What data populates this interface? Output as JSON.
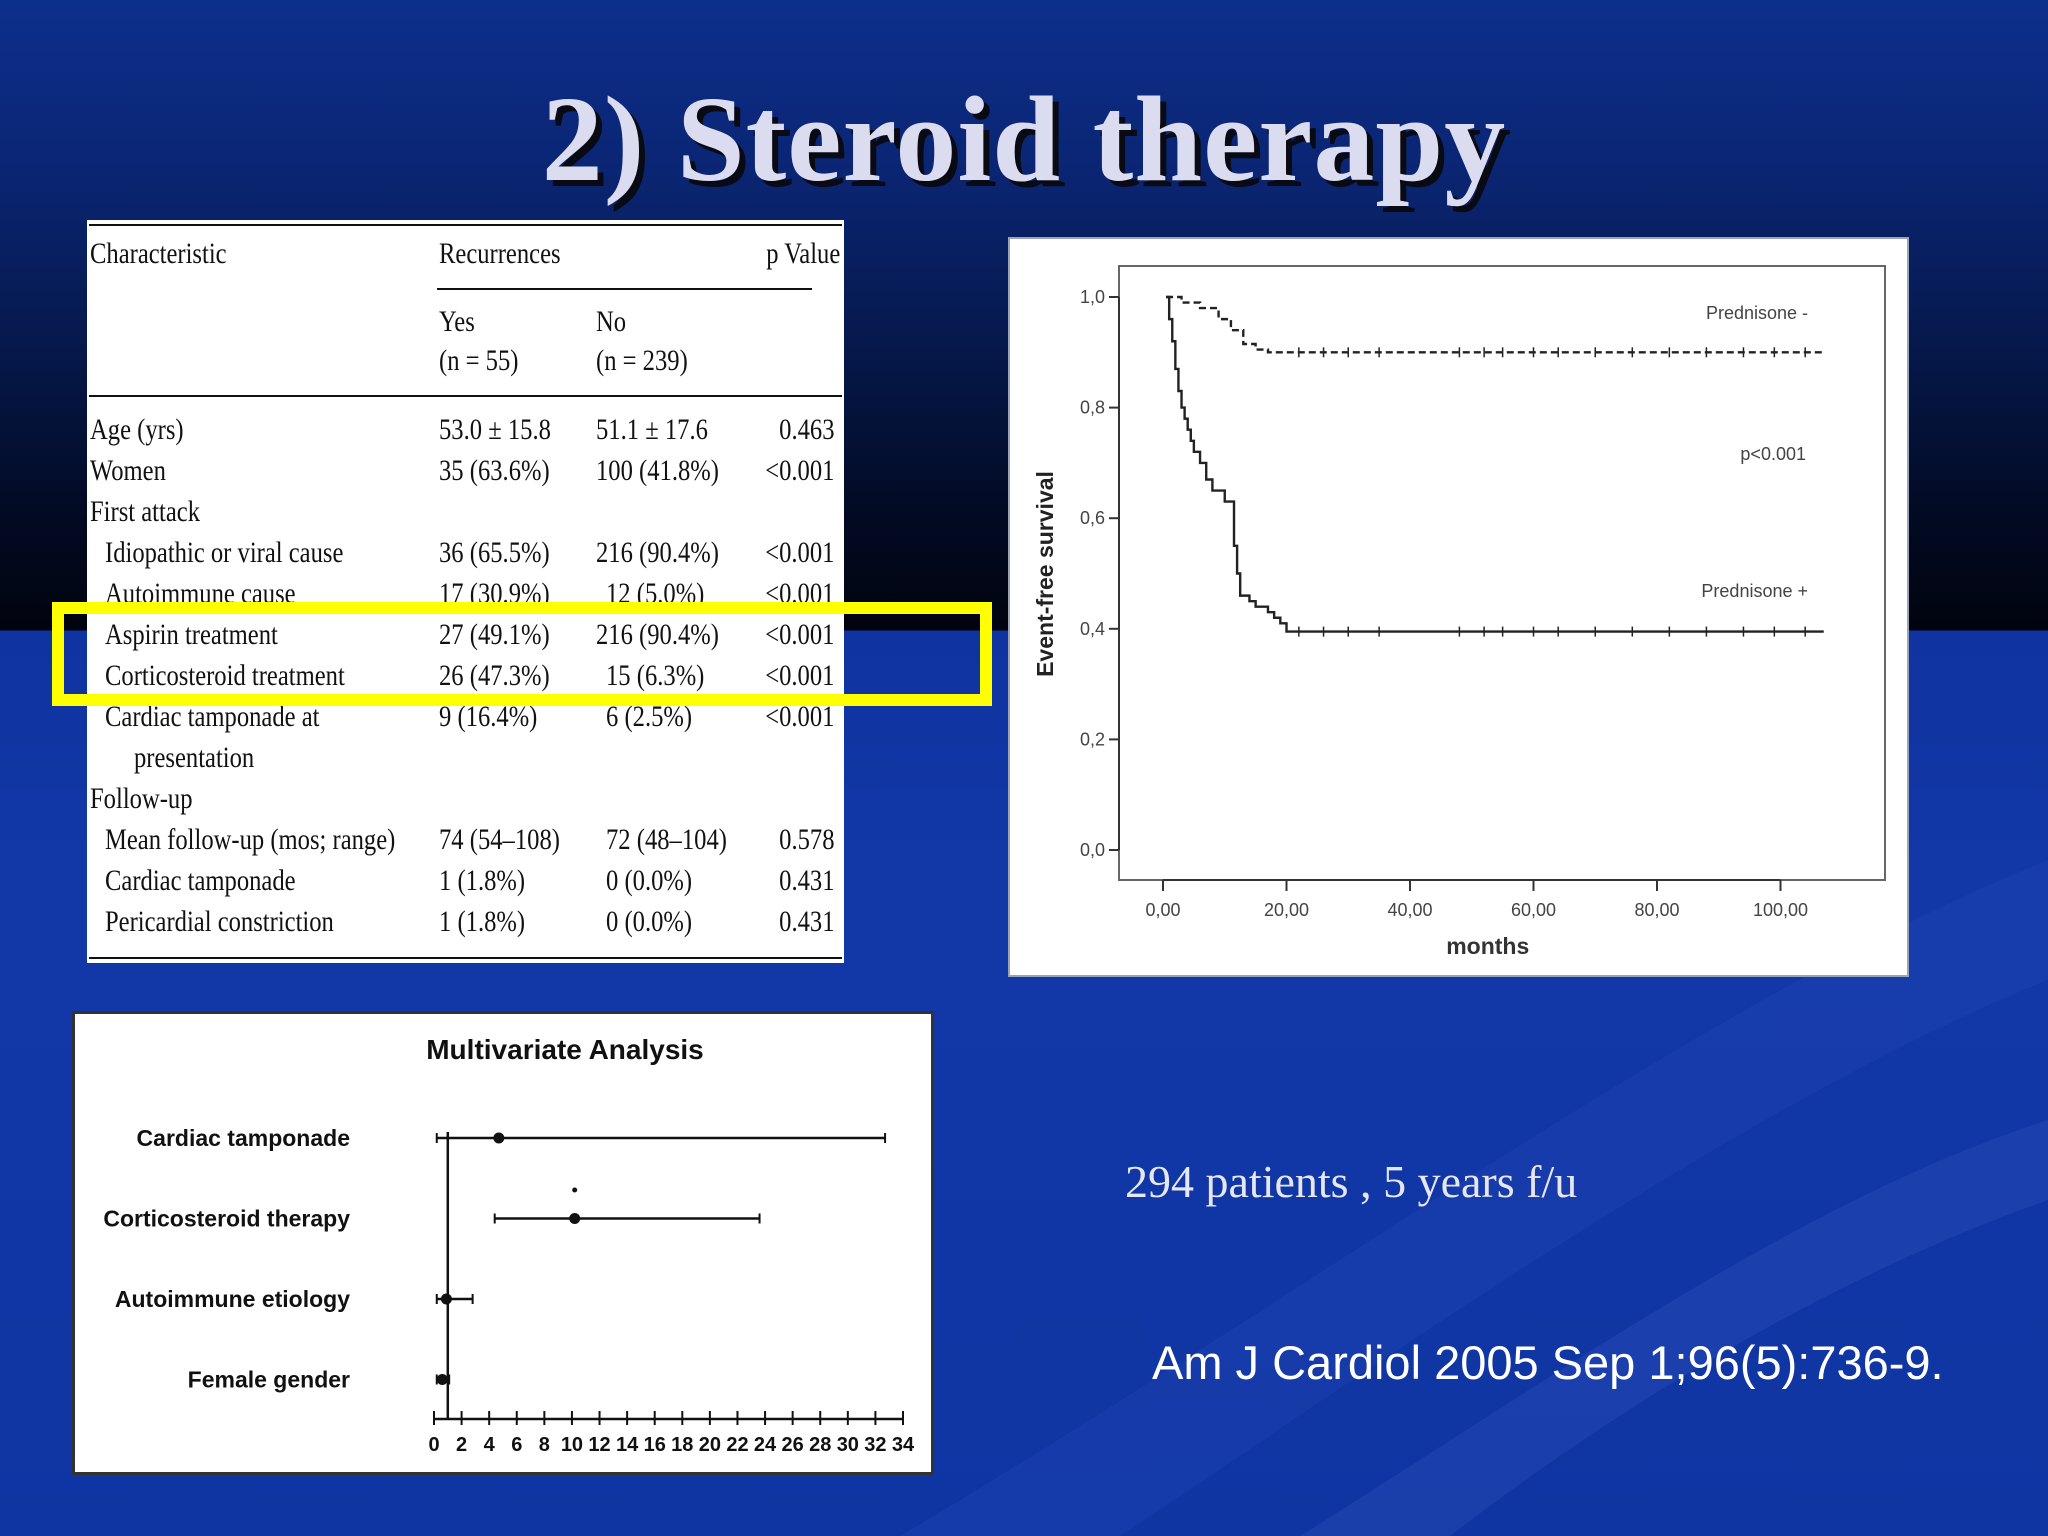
{
  "slide": {
    "title": "2) Steroid therapy",
    "caption": "294 patients , 5 years f/u",
    "citation": "Am J Cardiol 2005 Sep 1;96(5):736-9."
  },
  "table": {
    "header": {
      "characteristic": "Characteristic",
      "recurrences": "Recurrences",
      "p_value": "p Value",
      "yes": "Yes",
      "yes_n": "(n = 55)",
      "no": "No",
      "no_n": "(n = 239)"
    },
    "rows": [
      {
        "label": "Age (yrs)",
        "indent": 0,
        "yes": "53.0 ± 15.8",
        "no": "51.1 ± 17.6",
        "p": "0.463"
      },
      {
        "label": "Women",
        "indent": 0,
        "yes": "35 (63.6%)",
        "no": "100 (41.8%)",
        "p": "<0.001"
      },
      {
        "label": "First attack",
        "indent": 0,
        "yes": "",
        "no": "",
        "p": ""
      },
      {
        "label": "Idiopathic or viral cause",
        "indent": 1,
        "yes": "36 (65.5%)",
        "no": "216 (90.4%)",
        "p": "<0.001"
      },
      {
        "label": "Autoimmune cause",
        "indent": 1,
        "yes": "17 (30.9%)",
        "no": "12 (5.0%)",
        "p": "<0.001"
      },
      {
        "label": "Aspirin treatment",
        "indent": 1,
        "yes": "27 (49.1%)",
        "no": "216 (90.4%)",
        "p": "<0.001"
      },
      {
        "label": "Corticosteroid treatment",
        "indent": 1,
        "yes": "26 (47.3%)",
        "no": "15 (6.3%)",
        "p": "<0.001"
      },
      {
        "label": "Cardiac tamponade at",
        "indent": 1,
        "yes": "9 (16.4%)",
        "no": "6 (2.5%)",
        "p": "<0.001"
      },
      {
        "label": "presentation",
        "indent": 2,
        "yes": "",
        "no": "",
        "p": ""
      },
      {
        "label": "Follow-up",
        "indent": 0,
        "yes": "",
        "no": "",
        "p": ""
      },
      {
        "label": "Mean follow-up (mos; range)",
        "indent": 1,
        "yes": "74 (54–108)",
        "no": "72 (48–104)",
        "p": "0.578"
      },
      {
        "label": "Cardiac tamponade",
        "indent": 1,
        "yes": "1 (1.8%)",
        "no": "0 (0.0%)",
        "p": "0.431"
      },
      {
        "label": "Pericardial constriction",
        "indent": 1,
        "yes": "1 (1.8%)",
        "no": "0 (0.0%)",
        "p": "0.431"
      }
    ],
    "highlighted_rows": [
      "Aspirin treatment",
      "Corticosteroid treatment"
    ],
    "highlight_color": "#ffff00"
  },
  "chart_data": [
    {
      "type": "line",
      "xlabel": "months",
      "ylabel": "Event-free survival",
      "xlim": [
        0,
        110
      ],
      "ylim": [
        0,
        1
      ],
      "xticks": [
        "0,00",
        "20,00",
        "40,00",
        "60,00",
        "80,00",
        "100,00"
      ],
      "yticks": [
        "0,0",
        "0,2",
        "0,4",
        "0,6",
        "0,8",
        "1,0"
      ],
      "annotation": "p<0.001",
      "series": [
        {
          "name": "Prednisone -",
          "style": "dashed",
          "x": [
            0.5,
            3,
            6,
            9,
            11,
            13,
            15,
            17,
            19,
            20,
            107
          ],
          "y": [
            1.0,
            0.99,
            0.98,
            0.96,
            0.94,
            0.915,
            0.905,
            0.9,
            0.9,
            0.9,
            0.9
          ]
        },
        {
          "name": "Prednisone +",
          "style": "solid",
          "x": [
            0.5,
            1,
            1.5,
            2,
            2.5,
            3,
            3.5,
            4,
            4.5,
            5,
            6,
            7,
            8,
            9,
            10,
            11,
            11.5,
            12,
            12.5,
            14,
            15,
            16,
            17,
            18,
            19,
            20,
            107
          ],
          "y": [
            1.0,
            0.96,
            0.92,
            0.87,
            0.83,
            0.8,
            0.78,
            0.76,
            0.74,
            0.72,
            0.7,
            0.67,
            0.65,
            0.65,
            0.63,
            0.63,
            0.55,
            0.5,
            0.46,
            0.45,
            0.44,
            0.44,
            0.43,
            0.42,
            0.41,
            0.395,
            0.395
          ]
        }
      ]
    },
    {
      "type": "scatter",
      "title": "Multivariate Analysis",
      "xlim": [
        0,
        34
      ],
      "xticks": [
        "0",
        "2",
        "4",
        "6",
        "8",
        "10",
        "12",
        "14",
        "16",
        "18",
        "20",
        "22",
        "24",
        "26",
        "28",
        "30",
        "32",
        "34"
      ],
      "categories": [
        "Cardiac tamponade",
        "Corticosteroid therapy",
        "Autoimmune etiology",
        "Female gender"
      ],
      "estimates": [
        4.7,
        10.2,
        0.9,
        0.6
      ],
      "ci_low": [
        0.2,
        4.4,
        0.2,
        0.2
      ],
      "ci_high": [
        32.7,
        23.6,
        2.8,
        1.1
      ],
      "reference_line": 1
    }
  ]
}
